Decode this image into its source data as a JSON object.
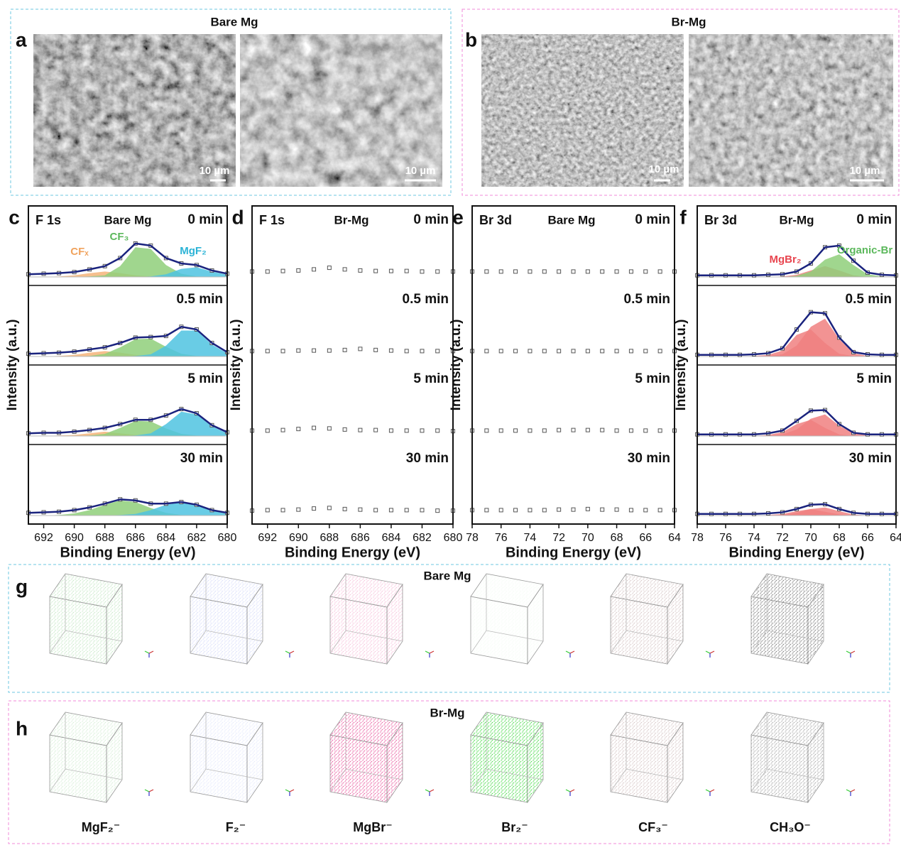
{
  "panel_a": {
    "label": "a",
    "title": "Bare Mg",
    "scale_bars": [
      "10 µm",
      "10 µm"
    ]
  },
  "panel_b": {
    "label": "b",
    "title": "Br-Mg",
    "scale_bars": [
      "10 µm",
      "10 µm"
    ]
  },
  "chart_data": [
    {
      "type": "line",
      "panel": "c",
      "core_level": "F 1s",
      "sample": "Bare Mg",
      "xlabel": "Binding Energy (eV)",
      "ylabel": "Intensity (a.u.)",
      "x": [
        693,
        692,
        691,
        690,
        689,
        688,
        687,
        686,
        685,
        684,
        683,
        682,
        681,
        680
      ],
      "xlim": [
        693,
        680
      ],
      "xticks": [
        692,
        690,
        688,
        686,
        684,
        682,
        680
      ],
      "ylim": [
        0,
        100
      ],
      "separators": true,
      "fit_color": "#1a237e",
      "marker_color": "#555555",
      "annotations": [
        {
          "text": "CFₓ",
          "color": "#f0a35e"
        },
        {
          "text": "CF₃",
          "color": "#5cb85c"
        },
        {
          "text": "MgF₂",
          "color": "#2bb3d6"
        }
      ],
      "series": [
        {
          "name": "0 min",
          "values": [
            5,
            6,
            7,
            9,
            14,
            20,
            35,
            62,
            58,
            35,
            25,
            22,
            12,
            6
          ],
          "components": [
            {
              "color": "#f5b47a",
              "values": [
                0,
                0,
                1,
                3,
                7,
                10,
                7,
                3,
                1,
                0,
                0,
                0,
                0,
                0
              ]
            },
            {
              "color": "#8fcf7a",
              "values": [
                0,
                0,
                0,
                0,
                1,
                3,
                20,
                55,
                52,
                22,
                6,
                1,
                0,
                0
              ]
            },
            {
              "color": "#4fc3e0",
              "values": [
                0,
                0,
                0,
                0,
                0,
                0,
                0,
                0,
                1,
                5,
                15,
                18,
                10,
                4
              ]
            }
          ]
        },
        {
          "name": "0.5 min",
          "values": [
            5,
            6,
            7,
            9,
            13,
            17,
            25,
            35,
            36,
            38,
            55,
            50,
            25,
            8
          ],
          "components": [
            {
              "color": "#f5b47a",
              "values": [
                0,
                0,
                1,
                3,
                7,
                10,
                7,
                3,
                1,
                0,
                0,
                0,
                0,
                0
              ]
            },
            {
              "color": "#8fcf7a",
              "values": [
                0,
                0,
                0,
                0,
                1,
                5,
                17,
                32,
                33,
                18,
                5,
                1,
                0,
                0
              ]
            },
            {
              "color": "#4fc3e0",
              "values": [
                0,
                0,
                0,
                0,
                0,
                0,
                0,
                1,
                4,
                20,
                48,
                48,
                22,
                6
              ]
            }
          ]
        },
        {
          "name": "5 min",
          "values": [
            5,
            6,
            6,
            8,
            11,
            15,
            22,
            30,
            30,
            38,
            50,
            42,
            20,
            7
          ],
          "components": [
            {
              "color": "#f5b47a",
              "values": [
                0,
                0,
                1,
                2,
                5,
                8,
                5,
                2,
                0,
                0,
                0,
                0,
                0,
                0
              ]
            },
            {
              "color": "#8fcf7a",
              "values": [
                0,
                0,
                0,
                0,
                1,
                4,
                15,
                28,
                27,
                14,
                4,
                1,
                0,
                0
              ]
            },
            {
              "color": "#4fc3e0",
              "values": [
                0,
                0,
                0,
                0,
                0,
                0,
                0,
                1,
                5,
                22,
                45,
                40,
                18,
                5
              ]
            }
          ]
        },
        {
          "name": "30 min",
          "values": [
            5,
            6,
            7,
            10,
            15,
            22,
            30,
            28,
            22,
            22,
            25,
            20,
            10,
            5
          ],
          "components": [
            {
              "color": "#8fcf7a",
              "values": [
                0,
                0,
                1,
                4,
                10,
                20,
                28,
                25,
                14,
                5,
                1,
                0,
                0,
                0
              ]
            },
            {
              "color": "#4fc3e0",
              "values": [
                0,
                0,
                0,
                0,
                0,
                0,
                1,
                3,
                10,
                20,
                24,
                19,
                9,
                3
              ]
            }
          ]
        }
      ]
    },
    {
      "type": "line",
      "panel": "d",
      "core_level": "F 1s",
      "sample": "Br-Mg",
      "xlabel": "Binding Energy (eV)",
      "ylabel": "Intensity (a.u.)",
      "x": [
        693,
        692,
        691,
        690,
        689,
        688,
        687,
        686,
        685,
        684,
        683,
        682,
        681,
        680
      ],
      "xlim": [
        693,
        680
      ],
      "xticks": [
        692,
        690,
        688,
        686,
        684,
        682,
        680
      ],
      "ylim": [
        0,
        100
      ],
      "separators": false,
      "marker_color": "#555555",
      "series": [
        {
          "name": "0 min",
          "values": [
            10,
            10,
            11,
            12,
            14,
            17,
            14,
            12,
            11,
            11,
            11,
            10,
            10,
            10
          ]
        },
        {
          "name": "0.5 min",
          "values": [
            10,
            10,
            10,
            11,
            11,
            11,
            12,
            14,
            12,
            11,
            10,
            10,
            10,
            10
          ]
        },
        {
          "name": "5 min",
          "values": [
            10,
            10,
            11,
            13,
            15,
            14,
            12,
            11,
            11,
            10,
            10,
            10,
            10,
            9
          ]
        },
        {
          "name": "30 min",
          "values": [
            9,
            10,
            10,
            11,
            13,
            14,
            12,
            11,
            10,
            10,
            10,
            10,
            9,
            9
          ]
        }
      ]
    },
    {
      "type": "line",
      "panel": "e",
      "core_level": "Br 3d",
      "sample": "Bare Mg",
      "xlabel": "Binding Energy (eV)",
      "ylabel": "Intensity (a.u.)",
      "x": [
        78,
        77,
        76,
        75,
        74,
        73,
        72,
        71,
        70,
        69,
        68,
        67,
        66,
        65,
        64
      ],
      "xlim": [
        78,
        64
      ],
      "xticks": [
        78,
        76,
        74,
        72,
        70,
        68,
        66,
        64
      ],
      "ylim": [
        0,
        100
      ],
      "separators": false,
      "marker_color": "#555555",
      "series": [
        {
          "name": "0 min",
          "values": [
            10,
            10,
            10,
            10,
            10,
            10,
            10,
            10,
            10,
            10,
            10,
            10,
            10,
            10,
            10
          ]
        },
        {
          "name": "0.5 min",
          "values": [
            10,
            10,
            10,
            10,
            10,
            10,
            10,
            10,
            10,
            10,
            10,
            10,
            10,
            10,
            10
          ]
        },
        {
          "name": "5 min",
          "values": [
            10,
            10,
            10,
            10,
            10,
            10,
            11,
            11,
            11,
            11,
            10,
            10,
            10,
            10,
            10
          ]
        },
        {
          "name": "30 min",
          "values": [
            10,
            10,
            10,
            10,
            10,
            10,
            11,
            11,
            12,
            11,
            11,
            10,
            10,
            10,
            10
          ]
        }
      ]
    },
    {
      "type": "line",
      "panel": "f",
      "core_level": "Br 3d",
      "sample": "Br-Mg",
      "xlabel": "Binding Energy (eV)",
      "ylabel": "Intensity (a.u.)",
      "x": [
        78,
        77,
        76,
        75,
        74,
        73,
        72,
        71,
        70,
        69,
        68,
        67,
        66,
        65,
        64
      ],
      "xlim": [
        78,
        64
      ],
      "xticks": [
        78,
        76,
        74,
        72,
        70,
        68,
        66,
        64
      ],
      "ylim": [
        0,
        100
      ],
      "separators": true,
      "fit_color": "#1a237e",
      "marker_color": "#555555",
      "annotations": [
        {
          "text": "MgBr₂",
          "color": "#e8454f"
        },
        {
          "text": "Organic-Br",
          "color": "#5cb85c"
        }
      ],
      "series": [
        {
          "name": "0 min",
          "values": [
            3,
            3,
            3,
            3,
            3,
            4,
            5,
            10,
            25,
            55,
            58,
            30,
            8,
            4,
            3
          ],
          "components": [
            {
              "color": "#f08080",
              "values": [
                0,
                0,
                0,
                0,
                0,
                0,
                1,
                4,
                12,
                20,
                12,
                3,
                0,
                0,
                0
              ]
            },
            {
              "color": "#8fcf7a",
              "values": [
                0,
                0,
                0,
                0,
                0,
                0,
                0,
                2,
                10,
                32,
                42,
                22,
                5,
                1,
                0
              ]
            }
          ]
        },
        {
          "name": "0.5 min",
          "values": [
            3,
            3,
            3,
            3,
            4,
            6,
            15,
            50,
            82,
            80,
            35,
            8,
            4,
            3,
            3
          ],
          "components": [
            {
              "color": "#f08080",
              "values": [
                0,
                0,
                0,
                0,
                1,
                3,
                11,
                40,
                50,
                25,
                5,
                1,
                0,
                0,
                0
              ]
            },
            {
              "color": "#f08080",
              "values": [
                0,
                0,
                0,
                0,
                0,
                1,
                4,
                20,
                55,
                70,
                32,
                6,
                1,
                0,
                0
              ]
            }
          ]
        },
        {
          "name": "5 min",
          "values": [
            3,
            3,
            3,
            3,
            3,
            5,
            10,
            28,
            47,
            48,
            22,
            6,
            3,
            3,
            3
          ],
          "components": [
            {
              "color": "#f08080",
              "values": [
                0,
                0,
                0,
                0,
                0,
                2,
                7,
                22,
                30,
                15,
                3,
                0,
                0,
                0,
                0
              ]
            },
            {
              "color": "#f08080",
              "values": [
                0,
                0,
                0,
                0,
                0,
                1,
                3,
                12,
                32,
                40,
                19,
                5,
                1,
                0,
                0
              ]
            }
          ]
        },
        {
          "name": "30 min",
          "values": [
            3,
            3,
            3,
            3,
            3,
            4,
            6,
            12,
            20,
            21,
            12,
            5,
            3,
            3,
            3
          ],
          "components": [
            {
              "color": "#f08080",
              "values": [
                0,
                0,
                0,
                0,
                0,
                1,
                3,
                8,
                12,
                7,
                2,
                0,
                0,
                0,
                0
              ]
            },
            {
              "color": "#f08080",
              "values": [
                0,
                0,
                0,
                0,
                0,
                0,
                1,
                5,
                12,
                15,
                8,
                2,
                0,
                0,
                0
              ]
            }
          ]
        }
      ]
    }
  ],
  "panel_g": {
    "label": "g",
    "title": "Bare Mg"
  },
  "panel_h": {
    "label": "h",
    "title": "Br-Mg",
    "species": [
      "MgF₂⁻",
      "F₂⁻",
      "MgBr⁻",
      "Br₂⁻",
      "CF₃⁻",
      "CH₃O⁻"
    ]
  }
}
